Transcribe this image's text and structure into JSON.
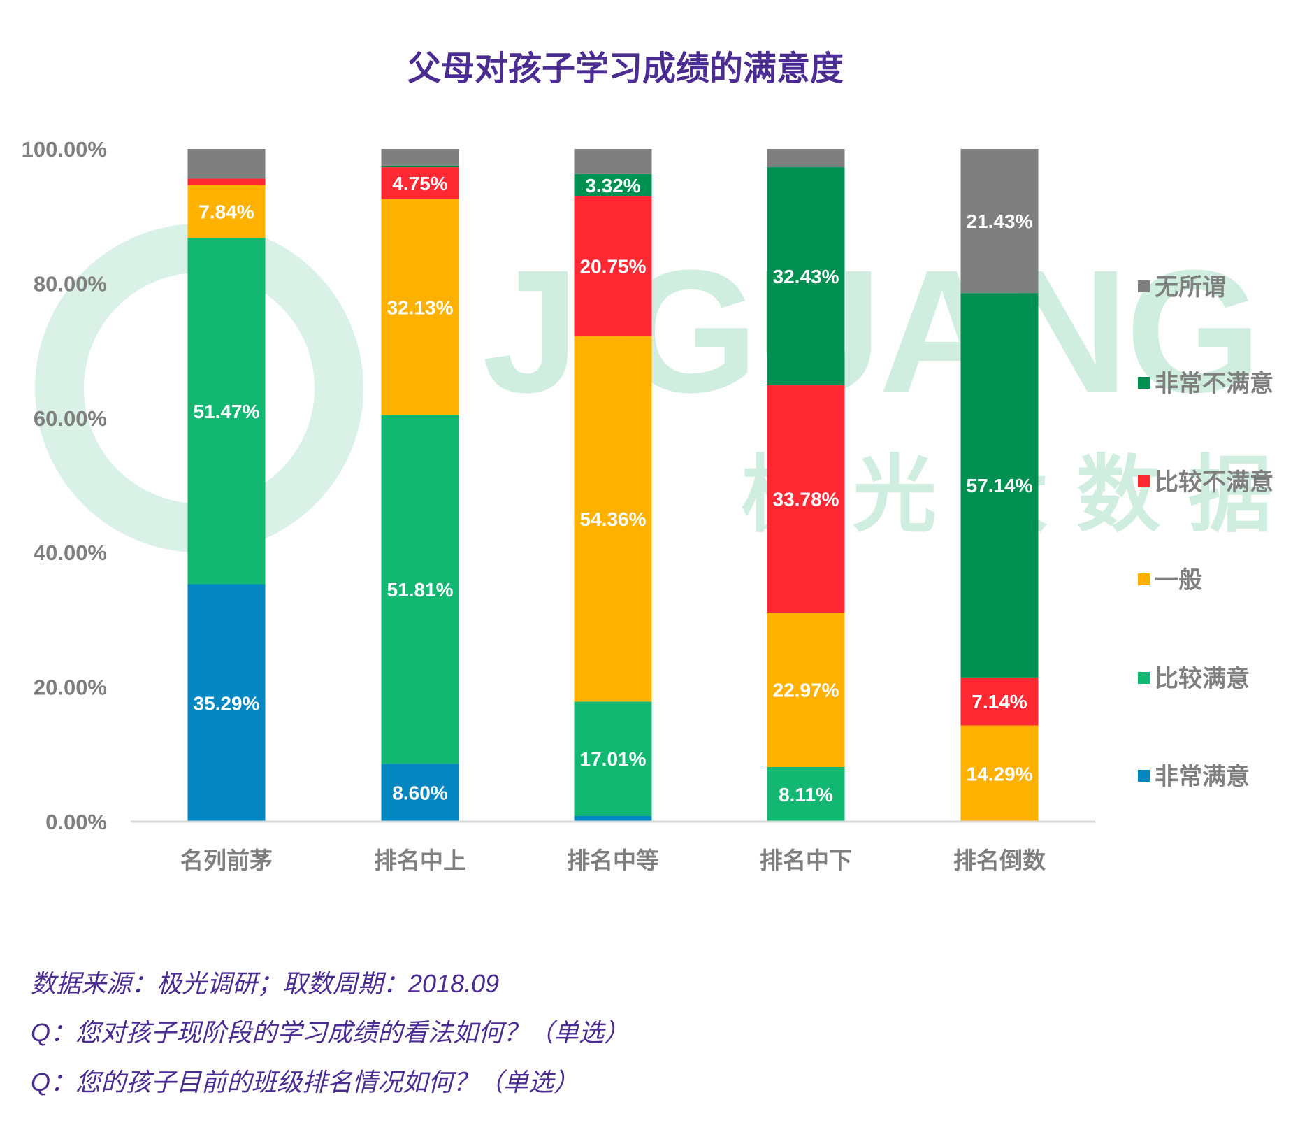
{
  "watermark": {
    "brand": "JIGUANG",
    "brand_cn": "极光大数据"
  },
  "chart_data": {
    "type": "bar",
    "stacked": true,
    "title": "父母对孩子学习成绩的满意度",
    "categories": [
      "名列前茅",
      "排名中上",
      "排名中等",
      "排名中下",
      "排名倒数"
    ],
    "ylim": [
      0,
      100
    ],
    "yticks": [
      "0.00%",
      "20.00%",
      "40.00%",
      "60.00%",
      "80.00%",
      "100.00%"
    ],
    "legend_position": "right",
    "series": [
      {
        "name": "非常满意",
        "color": "#0487c0",
        "values": [
          35.29,
          8.6,
          0.83,
          0,
          0
        ],
        "labels": [
          "35.29%",
          "8.60%",
          "",
          "",
          ""
        ]
      },
      {
        "name": "比较满意",
        "color": "#12b872",
        "values": [
          51.47,
          51.81,
          17.01,
          8.11,
          0
        ],
        "labels": [
          "51.47%",
          "51.81%",
          "17.01%",
          "8.11%",
          ""
        ]
      },
      {
        "name": "一般",
        "color": "#ffb100",
        "values": [
          7.84,
          32.13,
          54.36,
          22.97,
          14.29
        ],
        "labels": [
          "7.84%",
          "32.13%",
          "54.36%",
          "22.97%",
          "14.29%"
        ]
      },
      {
        "name": "比较不满意",
        "color": "#fe2833",
        "values": [
          0.98,
          4.75,
          20.75,
          33.78,
          7.14
        ],
        "labels": [
          "",
          "4.75%",
          "20.75%",
          "33.78%",
          "7.14%"
        ]
      },
      {
        "name": "非常不满意",
        "color": "#009052",
        "values": [
          0,
          0.23,
          3.32,
          32.43,
          57.14
        ],
        "labels": [
          "",
          "",
          "3.32%",
          "32.43%",
          "57.14%"
        ]
      },
      {
        "name": "无所谓",
        "color": "#7f7f7f",
        "values": [
          4.42,
          2.48,
          3.73,
          2.71,
          21.43
        ],
        "labels": [
          "",
          "",
          "",
          "",
          "21.43%"
        ]
      }
    ]
  },
  "footnotes": [
    "数据来源：极光调研；取数周期：2018.09",
    "Q：您对孩子现阶段的学习成绩的看法如何？（单选）",
    "Q：您的孩子目前的班级排名情况如何？（单选）"
  ]
}
